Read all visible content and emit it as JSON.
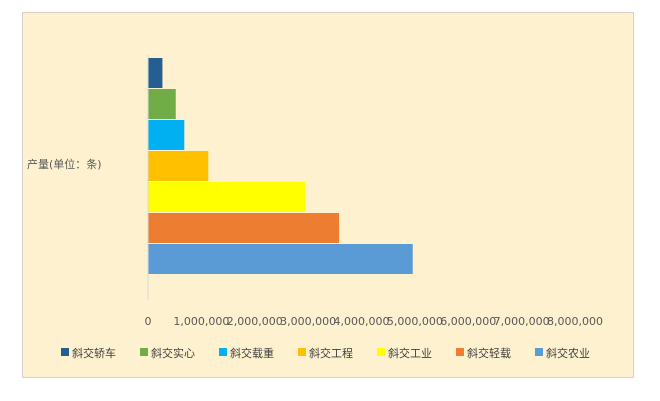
{
  "chart_data": {
    "type": "bar",
    "orientation": "horizontal",
    "categories": [
      "产量(单位：条)"
    ],
    "series": [
      {
        "name": "斜交轿车",
        "color": "#255e91",
        "values": [
          270000
        ]
      },
      {
        "name": "斜交实心",
        "color": "#70ad47",
        "values": [
          520000
        ]
      },
      {
        "name": "斜交载重",
        "color": "#00b0f0",
        "values": [
          680000
        ]
      },
      {
        "name": "斜交工程",
        "color": "#ffc000",
        "values": [
          1130000
        ]
      },
      {
        "name": "斜交工业",
        "color": "#ffff00",
        "values": [
          2950000
        ]
      },
      {
        "name": "斜交轻载",
        "color": "#ed7d31",
        "values": [
          3580000
        ]
      },
      {
        "name": "斜交农业",
        "color": "#5b9bd5",
        "values": [
          4960000
        ]
      }
    ],
    "xlim": [
      0,
      8000000
    ],
    "xticks": [
      "0",
      "1,000,000",
      "2,000,000",
      "3,000,000",
      "4,000,000",
      "5,000,000",
      "6,000,000",
      "7,000,000",
      "8,000,000"
    ],
    "title": "",
    "xlabel": "",
    "ylabel": "",
    "legend": "bottom",
    "grid": false
  }
}
